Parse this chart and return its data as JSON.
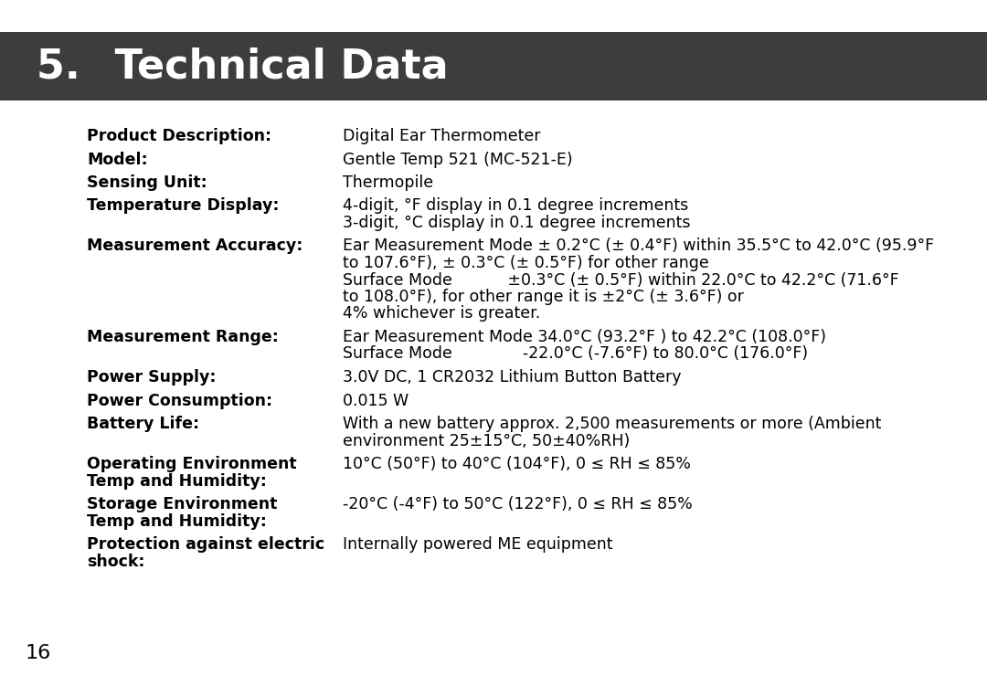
{
  "title": "5.  Technical Data",
  "title_bg": "#3d3d3d",
  "title_color": "#ffffff",
  "title_fontsize": 32,
  "bg_color": "#ffffff",
  "page_number": "16",
  "label_color": "#000000",
  "value_color": "#000000",
  "label_fontsize": 12.5,
  "value_fontsize": 12.5,
  "rows": [
    {
      "label": "Product Description:",
      "value_lines": [
        "Digital Ear Thermometer"
      ]
    },
    {
      "label": "Model:",
      "value_lines": [
        "Gentle Temp 521 (MC-521-E)"
      ]
    },
    {
      "label": "Sensing Unit:",
      "value_lines": [
        "Thermopile"
      ]
    },
    {
      "label": "Temperature Display:",
      "value_lines": [
        "4-digit, °F display in 0.1 degree increments",
        "3-digit, °C display in 0.1 degree increments"
      ]
    },
    {
      "label": "Measurement Accuracy:",
      "value_lines": [
        "Ear Measurement Mode ± 0.2°C (± 0.4°F) within 35.5°C to 42.0°C (95.9°F",
        "to 107.6°F), ± 0.3°C (± 0.5°F) for other range",
        "Surface Mode           ±0.3°C (± 0.5°F) within 22.0°C to 42.2°C (71.6°F",
        "to 108.0°F), for other range it is ±2°C (± 3.6°F) or",
        "4% whichever is greater."
      ]
    },
    {
      "label": "Measurement Range:",
      "value_lines": [
        "Ear Measurement Mode 34.0°C (93.2°F ) to 42.2°C (108.0°F)",
        "Surface Mode              -22.0°C (-7.6°F) to 80.0°C (176.0°F)"
      ]
    },
    {
      "label": "Power Supply:",
      "value_lines": [
        "3.0V DC, 1 CR2032 Lithium Button Battery"
      ]
    },
    {
      "label": "Power Consumption:",
      "value_lines": [
        "0.015 W"
      ]
    },
    {
      "label": "Battery Life:",
      "value_lines": [
        "With a new battery approx. 2,500 measurements or more (Ambient",
        "environment 25±15°C, 50±40%RH)"
      ]
    },
    {
      "label": "Operating Environment\nTemp and Humidity:",
      "value_lines": [
        "10°C (50°F) to 40°C (104°F), 0 ≤ RH ≤ 85%"
      ]
    },
    {
      "label": "Storage Environment\nTemp and Humidity:",
      "value_lines": [
        "-20°C (-4°F) to 50°C (122°F), 0 ≤ RH ≤ 85%"
      ]
    },
    {
      "label": "Protection against electric\nshock:",
      "value_lines": [
        "Internally powered ME equipment"
      ]
    }
  ]
}
